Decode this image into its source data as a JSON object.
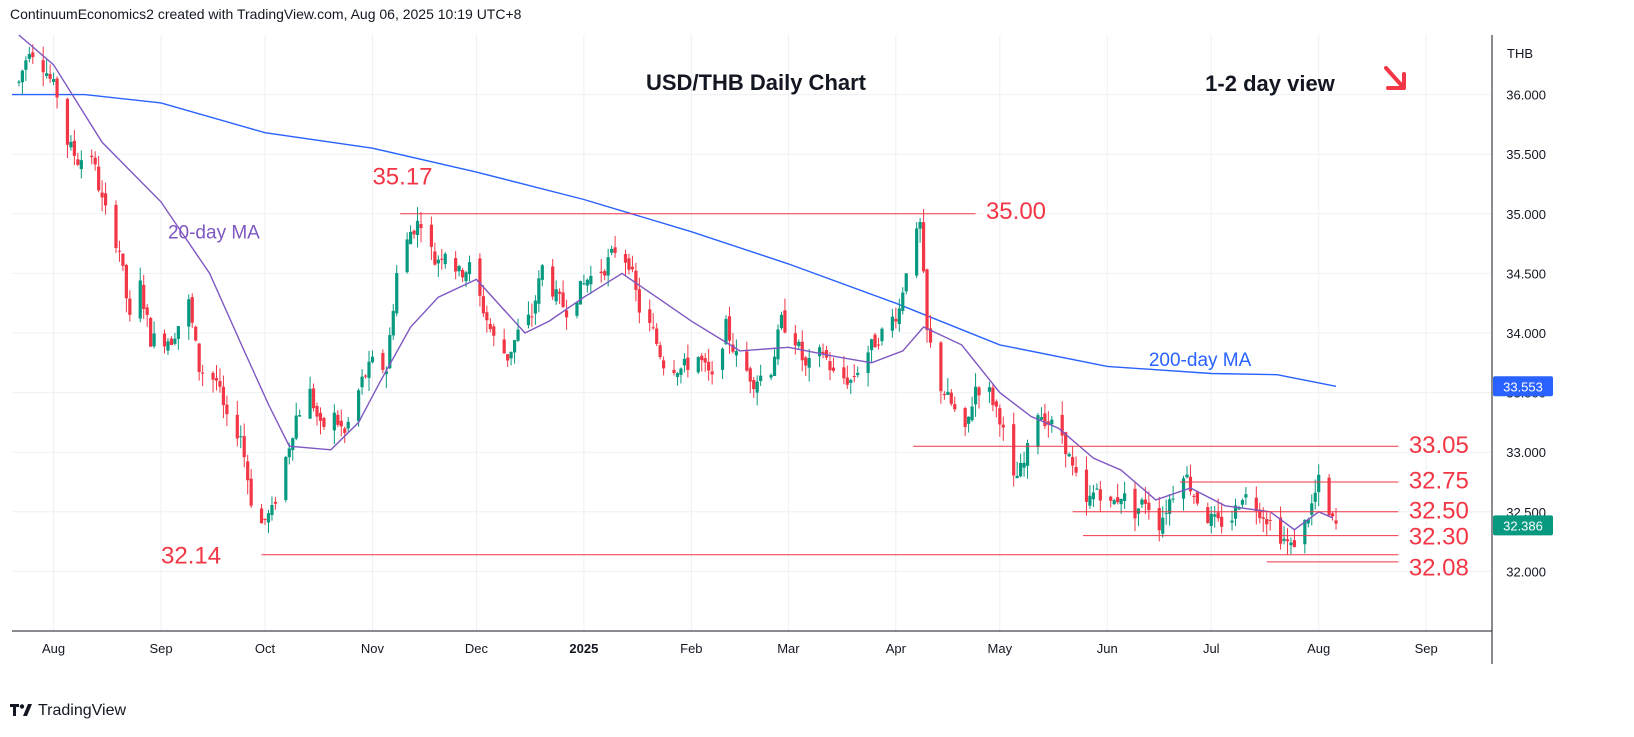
{
  "header": {
    "attribution": "ContinuumEconomics2 created with TradingView.com, Aug 06, 2025 10:19 UTC+8"
  },
  "footer": {
    "brand": "TradingView"
  },
  "colors": {
    "up": "#089981",
    "down": "#f23645",
    "ma20": "#7e57c2",
    "ma200": "#2962ff",
    "level": "#f23645",
    "grid": "#eef0f4",
    "price_tag": "#089981",
    "ma200_tag": "#2962ff"
  },
  "chart_data": {
    "type": "candlestick",
    "title": "USD/THB Daily Chart",
    "subtitle": "1-2 day view",
    "view_arrow": "down-right-arrow",
    "currency": "THB",
    "ylim": [
      31.5,
      36.5
    ],
    "y_ticks": [
      "32.000",
      "32.500",
      "33.000",
      "33.500",
      "34.000",
      "34.500",
      "35.000",
      "35.500",
      "36.000"
    ],
    "x_ticks": [
      {
        "label": "Aug",
        "date": "2024-08-01"
      },
      {
        "label": "Sep",
        "date": "2024-09-01"
      },
      {
        "label": "Oct",
        "date": "2024-10-01"
      },
      {
        "label": "Nov",
        "date": "2024-11-01"
      },
      {
        "label": "Dec",
        "date": "2024-12-01"
      },
      {
        "label": "2025",
        "date": "2025-01-01",
        "bold": true
      },
      {
        "label": "Feb",
        "date": "2025-02-01"
      },
      {
        "label": "Mar",
        "date": "2025-03-01"
      },
      {
        "label": "Apr",
        "date": "2025-04-01"
      },
      {
        "label": "May",
        "date": "2025-05-01"
      },
      {
        "label": "Jun",
        "date": "2025-06-01"
      },
      {
        "label": "Jul",
        "date": "2025-07-01"
      },
      {
        "label": "Aug",
        "date": "2025-08-01"
      },
      {
        "label": "Sep",
        "date": "2025-09-01"
      }
    ],
    "last_price": "32.386",
    "ma200_value": "33.553",
    "ma_labels": [
      {
        "text": "20-day MA",
        "date": "2024-09-03",
        "value": 34.85,
        "color": "#7e57c2"
      },
      {
        "text": "200-day MA",
        "date": "2025-06-13",
        "value": 33.78,
        "color": "#2962ff"
      }
    ],
    "levels": [
      {
        "label": "35.17",
        "value": 35.17,
        "kind": "peak",
        "label_date": "2024-11-01",
        "label_value": 35.32
      },
      {
        "label": "35.00",
        "value": 35.0,
        "from": "2024-11-09",
        "to": "2025-04-24",
        "label_date": "2025-04-27",
        "label_value": 35.03
      },
      {
        "label": "33.05",
        "value": 33.05,
        "from": "2025-04-06",
        "to": "2025-08-24",
        "label_date": "2025-08-27",
        "label_value": 33.07
      },
      {
        "label": "32.75",
        "value": 32.75,
        "from": "2025-06-22",
        "to": "2025-08-24",
        "label_date": "2025-08-27",
        "label_value": 32.77
      },
      {
        "label": "32.50",
        "value": 32.5,
        "from": "2025-05-22",
        "to": "2025-08-24",
        "label_date": "2025-08-27",
        "label_value": 32.52
      },
      {
        "label": "32.30",
        "value": 32.3,
        "from": "2025-05-25",
        "to": "2025-08-24",
        "label_date": "2025-08-27",
        "label_value": 32.3
      },
      {
        "label": "32.14",
        "value": 32.14,
        "from": "2024-09-30",
        "to": "2025-08-24",
        "label_date": "2024-09-01",
        "label_value": 32.14
      },
      {
        "label": "32.08",
        "value": 32.08,
        "from": "2025-07-17",
        "to": "2025-08-24",
        "label_date": "2025-08-27",
        "label_value": 32.04
      }
    ],
    "ma200_points": [
      [
        "2024-07-20",
        36.0
      ],
      [
        "2024-08-10",
        36.0
      ],
      [
        "2024-09-01",
        35.93
      ],
      [
        "2024-10-01",
        35.68
      ],
      [
        "2024-11-01",
        35.55
      ],
      [
        "2024-12-01",
        35.35
      ],
      [
        "2025-01-01",
        35.12
      ],
      [
        "2025-02-01",
        34.85
      ],
      [
        "2025-03-01",
        34.58
      ],
      [
        "2025-04-01",
        34.25
      ],
      [
        "2025-05-01",
        33.9
      ],
      [
        "2025-06-01",
        33.72
      ],
      [
        "2025-07-01",
        33.66
      ],
      [
        "2025-07-20",
        33.65
      ],
      [
        "2025-08-06",
        33.553
      ]
    ],
    "ma20_points": [
      [
        "2024-07-22",
        36.5
      ],
      [
        "2024-08-01",
        36.25
      ],
      [
        "2024-08-15",
        35.6
      ],
      [
        "2024-09-01",
        35.1
      ],
      [
        "2024-09-15",
        34.5
      ],
      [
        "2024-09-25",
        33.85
      ],
      [
        "2024-10-02",
        33.4
      ],
      [
        "2024-10-08",
        33.05
      ],
      [
        "2024-10-20",
        33.02
      ],
      [
        "2024-10-28",
        33.25
      ],
      [
        "2024-11-03",
        33.58
      ],
      [
        "2024-11-12",
        34.05
      ],
      [
        "2024-11-20",
        34.3
      ],
      [
        "2024-12-01",
        34.45
      ],
      [
        "2024-12-15",
        34.0
      ],
      [
        "2024-12-22",
        34.1
      ],
      [
        "2025-01-01",
        34.3
      ],
      [
        "2025-01-12",
        34.5
      ],
      [
        "2025-01-22",
        34.3
      ],
      [
        "2025-02-01",
        34.1
      ],
      [
        "2025-02-15",
        33.85
      ],
      [
        "2025-03-01",
        33.88
      ],
      [
        "2025-03-15",
        33.8
      ],
      [
        "2025-03-25",
        33.75
      ],
      [
        "2025-04-03",
        33.85
      ],
      [
        "2025-04-09",
        34.05
      ],
      [
        "2025-04-20",
        33.9
      ],
      [
        "2025-05-01",
        33.5
      ],
      [
        "2025-05-10",
        33.3
      ],
      [
        "2025-05-18",
        33.2
      ],
      [
        "2025-05-28",
        32.95
      ],
      [
        "2025-06-05",
        32.85
      ],
      [
        "2025-06-15",
        32.6
      ],
      [
        "2025-06-25",
        32.7
      ],
      [
        "2025-07-05",
        32.55
      ],
      [
        "2025-07-18",
        32.5
      ],
      [
        "2025-07-25",
        32.35
      ],
      [
        "2025-08-01",
        32.5
      ],
      [
        "2025-08-05",
        32.45
      ]
    ],
    "close_path": [
      [
        "2024-07-22",
        36.1
      ],
      [
        "2024-07-25",
        36.4
      ],
      [
        "2024-07-29",
        36.25
      ],
      [
        "2024-08-02",
        36.0
      ],
      [
        "2024-08-05",
        35.6
      ],
      [
        "2024-08-08",
        35.45
      ],
      [
        "2024-08-12",
        35.5
      ],
      [
        "2024-08-15",
        35.1
      ],
      [
        "2024-08-20",
        34.7
      ],
      [
        "2024-08-23",
        34.1
      ],
      [
        "2024-08-26",
        34.4
      ],
      [
        "2024-08-29",
        33.95
      ],
      [
        "2024-09-04",
        33.95
      ],
      [
        "2024-09-09",
        34.25
      ],
      [
        "2024-09-12",
        33.7
      ],
      [
        "2024-09-17",
        33.6
      ],
      [
        "2024-09-20",
        33.25
      ],
      [
        "2024-09-24",
        33.15
      ],
      [
        "2024-09-27",
        32.6
      ],
      [
        "2024-09-30",
        32.4
      ],
      [
        "2024-10-03",
        32.5
      ],
      [
        "2024-10-07",
        32.95
      ],
      [
        "2024-10-10",
        33.3
      ],
      [
        "2024-10-14",
        33.5
      ],
      [
        "2024-10-17",
        33.2
      ],
      [
        "2024-10-21",
        33.3
      ],
      [
        "2024-10-24",
        33.15
      ],
      [
        "2024-10-29",
        33.6
      ],
      [
        "2024-11-01",
        33.75
      ],
      [
        "2024-11-05",
        33.7
      ],
      [
        "2024-11-08",
        34.5
      ],
      [
        "2024-11-12",
        34.85
      ],
      [
        "2024-11-15",
        34.95
      ],
      [
        "2024-11-19",
        34.6
      ],
      [
        "2024-11-22",
        34.7
      ],
      [
        "2024-11-26",
        34.5
      ],
      [
        "2024-11-29",
        34.55
      ],
      [
        "2024-12-03",
        34.2
      ],
      [
        "2024-12-06",
        33.95
      ],
      [
        "2024-12-10",
        33.8
      ],
      [
        "2024-12-13",
        34.0
      ],
      [
        "2024-12-17",
        34.15
      ],
      [
        "2024-12-20",
        34.55
      ],
      [
        "2024-12-24",
        34.3
      ],
      [
        "2024-12-27",
        34.2
      ],
      [
        "2025-01-02",
        34.45
      ],
      [
        "2025-01-07",
        34.55
      ],
      [
        "2025-01-10",
        34.7
      ],
      [
        "2025-01-14",
        34.6
      ],
      [
        "2025-01-17",
        34.2
      ],
      [
        "2025-01-21",
        34.0
      ],
      [
        "2025-01-24",
        33.75
      ],
      [
        "2025-01-29",
        33.7
      ],
      [
        "2025-02-03",
        33.8
      ],
      [
        "2025-02-07",
        33.6
      ],
      [
        "2025-02-11",
        34.05
      ],
      [
        "2025-02-14",
        33.8
      ],
      [
        "2025-02-19",
        33.6
      ],
      [
        "2025-02-24",
        33.7
      ],
      [
        "2025-02-27",
        34.1
      ],
      [
        "2025-03-03",
        33.95
      ],
      [
        "2025-03-06",
        33.7
      ],
      [
        "2025-03-11",
        33.85
      ],
      [
        "2025-03-14",
        33.65
      ],
      [
        "2025-03-19",
        33.6
      ],
      [
        "2025-03-24",
        33.85
      ],
      [
        "2025-03-28",
        34.0
      ],
      [
        "2025-04-02",
        34.2
      ],
      [
        "2025-04-04",
        34.55
      ],
      [
        "2025-04-08",
        34.9
      ],
      [
        "2025-04-10",
        34.0
      ],
      [
        "2025-04-14",
        33.55
      ],
      [
        "2025-04-17",
        33.4
      ],
      [
        "2025-04-21",
        33.15
      ],
      [
        "2025-04-24",
        33.55
      ],
      [
        "2025-04-28",
        33.5
      ],
      [
        "2025-05-01",
        33.3
      ],
      [
        "2025-05-05",
        32.75
      ],
      [
        "2025-05-08",
        32.9
      ],
      [
        "2025-05-12",
        33.35
      ],
      [
        "2025-05-15",
        33.25
      ],
      [
        "2025-05-19",
        33.15
      ],
      [
        "2025-05-22",
        32.85
      ],
      [
        "2025-05-26",
        32.55
      ],
      [
        "2025-05-29",
        32.7
      ],
      [
        "2025-06-02",
        32.55
      ],
      [
        "2025-06-05",
        32.65
      ],
      [
        "2025-06-09",
        32.5
      ],
      [
        "2025-06-12",
        32.6
      ],
      [
        "2025-06-16",
        32.4
      ],
      [
        "2025-06-19",
        32.6
      ],
      [
        "2025-06-23",
        32.85
      ],
      [
        "2025-06-26",
        32.65
      ],
      [
        "2025-06-30",
        32.45
      ],
      [
        "2025-07-03",
        32.4
      ],
      [
        "2025-07-07",
        32.45
      ],
      [
        "2025-07-10",
        32.65
      ],
      [
        "2025-07-14",
        32.55
      ],
      [
        "2025-07-17",
        32.45
      ],
      [
        "2025-07-21",
        32.3
      ],
      [
        "2025-07-24",
        32.2
      ],
      [
        "2025-07-28",
        32.4
      ],
      [
        "2025-07-30",
        32.55
      ],
      [
        "2025-08-01",
        32.75
      ],
      [
        "2025-08-04",
        32.45
      ],
      [
        "2025-08-06",
        32.386
      ]
    ]
  }
}
